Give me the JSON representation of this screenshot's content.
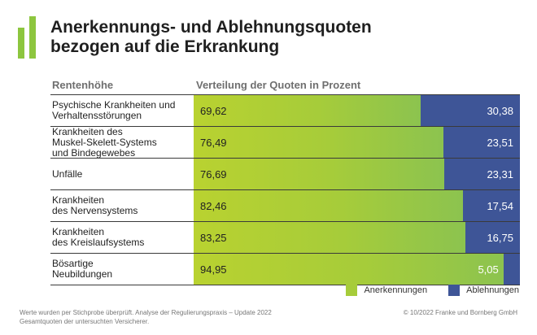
{
  "header": {
    "title_line1": "Anerkennungs- und Ablehnungsquoten",
    "title_line2": "bezogen auf die Erkrankung"
  },
  "columns": {
    "left": "Rentenhöhe",
    "right": "Verteilung der Quoten in Prozent"
  },
  "colors": {
    "accepted": "#a6cc3a",
    "rejected": "#3e5597",
    "logo": "#8dc63f"
  },
  "chart_data": {
    "type": "bar",
    "orientation": "horizontal",
    "stacked": true,
    "title": "Anerkennungs- und Ablehnungsquoten bezogen auf die Erkrankung",
    "xlabel": "Verteilung der Quoten in Prozent",
    "ylabel": "Rentenhöhe",
    "xlim": [
      0,
      100
    ],
    "categories": [
      "Psychische Krankheiten und\nVerhaltensstörungen",
      "Krankheiten des\nMuskel-Skelett-Systems\nund Bindegewebes",
      "Unfälle",
      "Krankheiten\ndes Nervensystems",
      "Krankheiten\ndes Kreislaufsystems",
      "Bösartige\nNeubildungen"
    ],
    "series": [
      {
        "name": "Anerkennungen",
        "values": [
          69.62,
          76.49,
          76.69,
          82.46,
          83.25,
          94.95
        ],
        "labels": [
          "69,62",
          "76,49",
          "76,69",
          "82,46",
          "83,25",
          "94,95"
        ]
      },
      {
        "name": "Ablehnungen",
        "values": [
          30.38,
          23.51,
          23.31,
          17.54,
          16.75,
          5.05
        ],
        "labels": [
          "30,38",
          "23,51",
          "23,31",
          "17,54",
          "16,75",
          "5,05"
        ]
      }
    ],
    "legend": "bottom-right",
    "grid": false
  },
  "legend": {
    "accepted_label": "Anerkennungen",
    "rejected_label": "Ablehnungen"
  },
  "footer": {
    "note_line1": "Werte wurden per Stichprobe überprüft. Analyse der Regulierungspraxis – Update 2022",
    "note_line2": "Gesamtquoten der untersuchten Versicherer.",
    "copyright": "© 10/2022 Franke und Bornberg GmbH"
  }
}
